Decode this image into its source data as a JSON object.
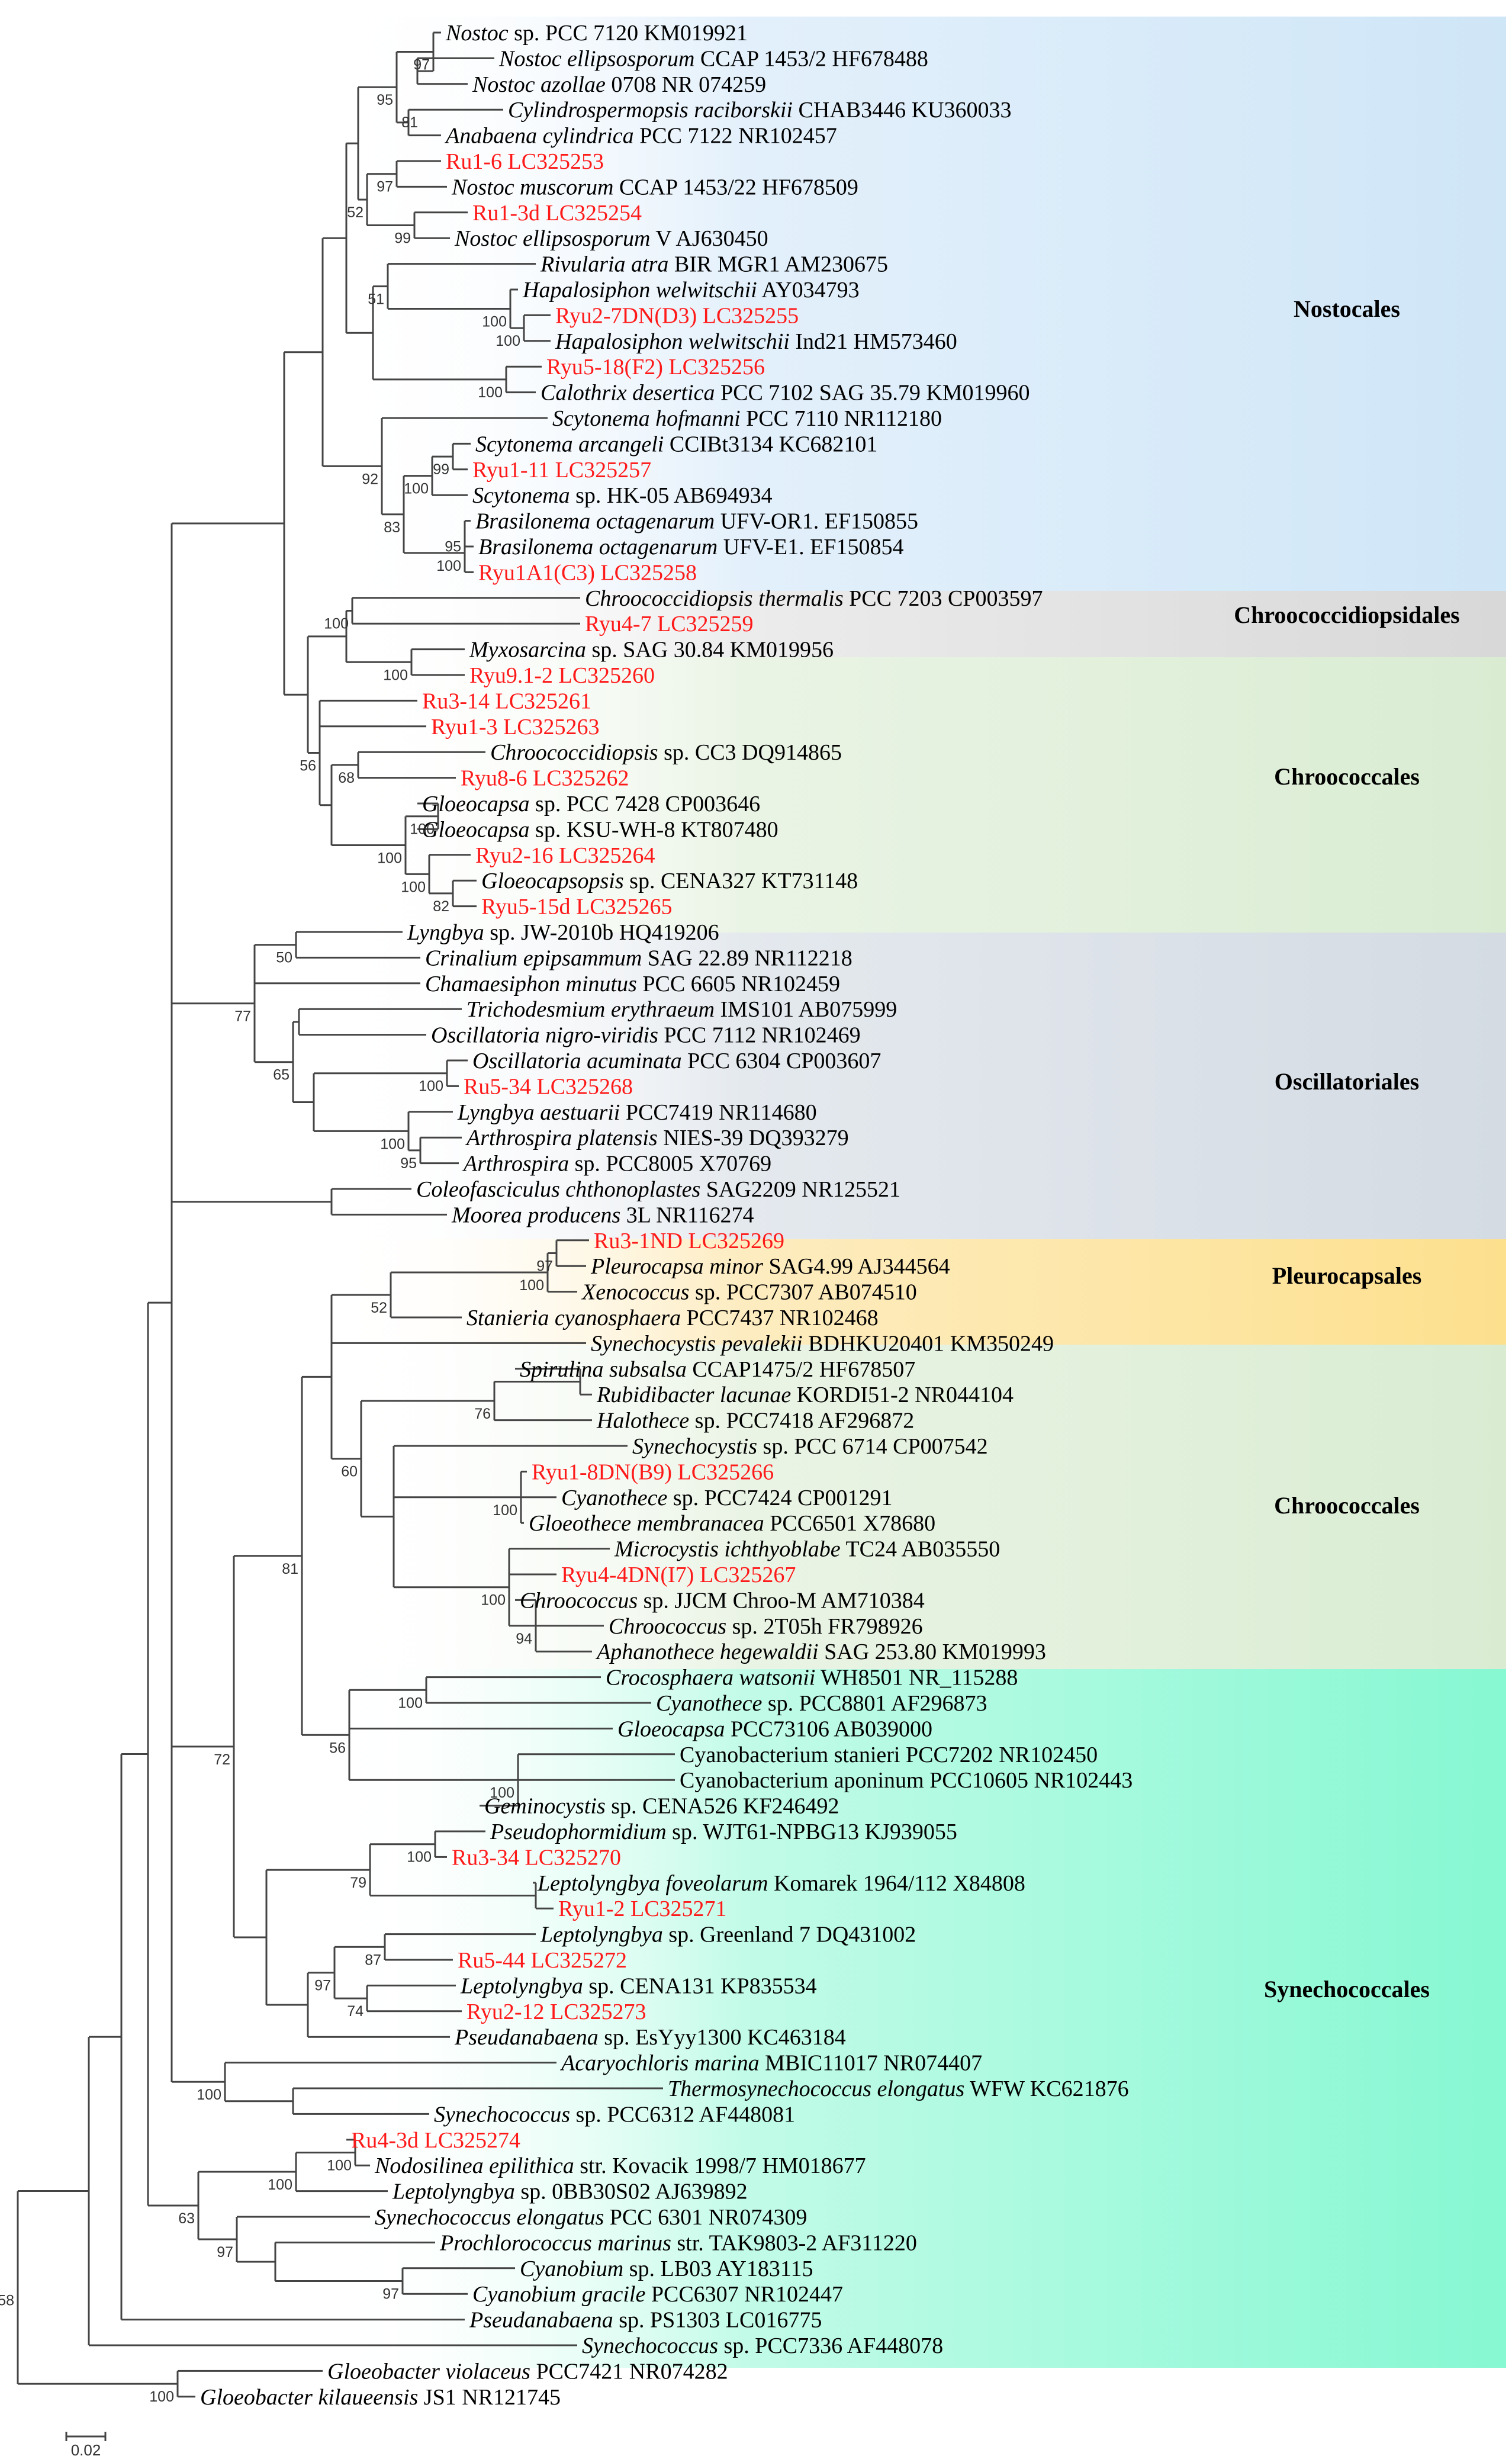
{
  "figure": "Phylogenetic tree of cyanobacteria 16S rRNA sequences",
  "orders": [
    {
      "name": "Nostocales",
      "color": "#cfe6f7"
    },
    {
      "name": "Chroococcidiopsidales",
      "color": "#dcdcdc"
    },
    {
      "name": "Chroococcales",
      "color": "#dcedd5"
    },
    {
      "name": "Oscillatoriales",
      "color": "#d6dde4"
    },
    {
      "name": "Pleurocapsales",
      "color": "#fde08e"
    },
    {
      "name": "Chroococcales",
      "color": "#dcedd5"
    },
    {
      "name": "Synechococcales",
      "color": "#8ff9d6"
    }
  ],
  "taxa": [
    {
      "it": "Nostoc",
      "rest": " sp. PCC 7120 KM019921",
      "red": false
    },
    {
      "it": "Nostoc ellipsosporum",
      "rest": " CCAP 1453/2 HF678488",
      "red": false
    },
    {
      "it": "Nostoc azollae",
      "rest": " 0708 NR 074259",
      "red": false
    },
    {
      "it": "Cylindrospermopsis raciborskii",
      "rest": " CHAB3446 KU360033",
      "red": false
    },
    {
      "it": "Anabaena cylindrica",
      "rest": " PCC 7122 NR102457",
      "red": false
    },
    {
      "it": "",
      "rest": "Ru1-6  LC325253",
      "red": true
    },
    {
      "it": "Nostoc muscorum",
      "rest": " CCAP 1453/22 HF678509",
      "red": false
    },
    {
      "it": "",
      "rest": "Ru1-3d LC325254",
      "red": true
    },
    {
      "it": "Nostoc ellipsosporum",
      "rest": " V AJ630450",
      "red": false
    },
    {
      "it": "Rivularia atra",
      "rest": " BIR MGR1 AM230675",
      "red": false
    },
    {
      "it": "Hapalosiphon welwitschii",
      "rest": " AY034793",
      "red": false
    },
    {
      "it": "",
      "rest": "Ryu2-7DN(D3) LC325255",
      "red": true
    },
    {
      "it": "Hapalosiphon welwitschii",
      "rest": " Ind21 HM573460",
      "red": false
    },
    {
      "it": "",
      "rest": "Ryu5-18(F2) LC325256",
      "red": true
    },
    {
      "it": "Calothrix desertica",
      "rest": " PCC 7102 SAG 35.79 KM019960",
      "red": false
    },
    {
      "it": "Scytonema hofmanni",
      "rest": " PCC 7110 NR112180",
      "red": false
    },
    {
      "it": "Scytonema arcangeli",
      "rest": " CCIBt3134 KC682101",
      "red": false
    },
    {
      "it": "",
      "rest": "Ryu1-11 LC325257",
      "red": true
    },
    {
      "it": "Scytonema",
      "rest": " sp. HK-05 AB694934",
      "red": false
    },
    {
      "it": "Brasilonema octagenarum",
      "rest": " UFV-OR1. EF150855",
      "red": false
    },
    {
      "it": "Brasilonema octagenarum",
      "rest": " UFV-E1. EF150854",
      "red": false
    },
    {
      "it": "",
      "rest": "Ryu1A1(C3) LC325258",
      "red": true
    },
    {
      "it": "Chroococcidiopsis thermalis",
      "rest": " PCC 7203 CP003597",
      "red": false
    },
    {
      "it": "",
      "rest": "Ryu4-7 LC325259",
      "red": true
    },
    {
      "it": "Myxosarcina",
      "rest": " sp. SAG 30.84 KM019956",
      "red": false
    },
    {
      "it": "",
      "rest": "Ryu9.1-2 LC325260",
      "red": true
    },
    {
      "it": "",
      "rest": "Ru3-14 LC325261",
      "red": true
    },
    {
      "it": "",
      "rest": "Ryu1-3 LC325263",
      "red": true
    },
    {
      "it": "Chroococcidiopsis",
      "rest": " sp. CC3 DQ914865",
      "red": false
    },
    {
      "it": "",
      "rest": "Ryu8-6 LC325262",
      "red": true
    },
    {
      "it": "Gloeocapsa",
      "rest": " sp. PCC 7428 CP003646",
      "red": false
    },
    {
      "it": "Gloeocapsa",
      "rest": " sp. KSU-WH-8 KT807480",
      "red": false
    },
    {
      "it": "",
      "rest": "Ryu2-16 LC325264",
      "red": true
    },
    {
      "it": "Gloeocapsopsis",
      "rest": " sp. CENA327 KT731148",
      "red": false
    },
    {
      "it": "",
      "rest": "Ryu5-15d LC325265",
      "red": true
    },
    {
      "it": "Lyngbya",
      "rest": " sp. JW-2010b HQ419206",
      "red": false
    },
    {
      "it": "Crinalium epipsammum",
      "rest": " SAG 22.89 NR112218",
      "red": false
    },
    {
      "it": "Chamaesiphon minutus",
      "rest": " PCC 6605 NR102459",
      "red": false
    },
    {
      "it": "Trichodesmium erythraeum",
      "rest": " IMS101 AB075999",
      "red": false
    },
    {
      "it": "Oscillatoria nigro-viridis",
      "rest": " PCC 7112 NR102469",
      "red": false
    },
    {
      "it": "Oscillatoria acuminata",
      "rest": " PCC 6304 CP003607",
      "red": false
    },
    {
      "it": "",
      "rest": "Ru5-34 LC325268",
      "red": true
    },
    {
      "it": "Lyngbya aestuarii",
      "rest": " PCC7419 NR114680",
      "red": false
    },
    {
      "it": "Arthrospira platensis",
      "rest": " NIES-39 DQ393279",
      "red": false
    },
    {
      "it": "Arthrospira",
      "rest": "  sp. PCC8005 X70769",
      "red": false
    },
    {
      "it": "Coleofasciculus chthonoplastes",
      "rest": " SAG2209 NR125521",
      "red": false
    },
    {
      "it": "Moorea producens",
      "rest": " 3L NR116274",
      "red": false
    },
    {
      "it": "",
      "rest": "Ru3-1ND LC325269",
      "red": true
    },
    {
      "it": "Pleurocapsa minor",
      "rest": " SAG4.99 AJ344564",
      "red": false
    },
    {
      "it": "Xenococcus",
      "rest": " sp. PCC7307 AB074510",
      "red": false
    },
    {
      "it": "Stanieria cyanosphaera",
      "rest": " PCC7437 NR102468",
      "red": false
    },
    {
      "it": "Synechocystis pevalekii",
      "rest": " BDHKU20401 KM350249",
      "red": false
    },
    {
      "it": "Spirulina subsalsa",
      "rest": " CCAP1475/2 HF678507",
      "red": false
    },
    {
      "it": "Rubidibacter lacunae",
      "rest": " KORDI51-2 NR044104",
      "red": false
    },
    {
      "it": "Halothece",
      "rest": " sp. PCC7418 AF296872",
      "red": false
    },
    {
      "it": "Synechocystis",
      "rest": " sp. PCC 6714 CP007542",
      "red": false
    },
    {
      "it": "",
      "rest": "Ryu1-8DN(B9) LC325266",
      "red": true
    },
    {
      "it": "Cyanothece",
      "rest": " sp. PCC7424 CP001291",
      "red": false
    },
    {
      "it": "Gloeothece membranacea",
      "rest": " PCC6501 X78680",
      "red": false
    },
    {
      "it": "Microcystis ichthyoblabe",
      "rest": " TC24 AB035550",
      "red": false
    },
    {
      "it": "",
      "rest": "Ryu4-4DN(I7) LC325267",
      "red": true
    },
    {
      "it": "Chroococcus",
      "rest": " sp. JJCM Chroo-M AM710384",
      "red": false
    },
    {
      "it": "Chroococcus",
      "rest": " sp. 2T05h FR798926",
      "red": false
    },
    {
      "it": "Aphanothece hegewaldii",
      "rest": " SAG 253.80 KM019993",
      "red": false
    },
    {
      "it": "Crocosphaera watsonii",
      "rest": " WH8501 NR_115288",
      "red": false
    },
    {
      "it": "Cyanothece",
      "rest": " sp. PCC8801 AF296873",
      "red": false
    },
    {
      "it": "Gloeocapsa",
      "rest": " PCC73106 AB039000",
      "red": false
    },
    {
      "it": "",
      "rest": "Cyanobacterium stanieri PCC7202 NR102450",
      "red": false
    },
    {
      "it": "",
      "rest": "Cyanobacterium aponinum PCC10605 NR102443",
      "red": false
    },
    {
      "it": "Geminocystis",
      "rest": " sp. CENA526 KF246492",
      "red": false
    },
    {
      "it": "Pseudophormidium",
      "rest": " sp. WJT61-NPBG13 KJ939055",
      "red": false
    },
    {
      "it": "",
      "rest": "Ru3-34 LC325270",
      "red": true
    },
    {
      "it": "Leptolyngbya foveolarum",
      "rest": " Komarek 1964/112 X84808",
      "red": false
    },
    {
      "it": "",
      "rest": "Ryu1-2 LC325271",
      "red": true
    },
    {
      "it": "Leptolyngbya",
      "rest": " sp. Greenland 7 DQ431002",
      "red": false
    },
    {
      "it": "",
      "rest": "Ru5-44 LC325272",
      "red": true
    },
    {
      "it": "Leptolyngbya",
      "rest": " sp. CENA131 KP835534",
      "red": false
    },
    {
      "it": "",
      "rest": "Ryu2-12 LC325273",
      "red": true
    },
    {
      "it": "Pseudanabaena",
      "rest": " sp. EsYyy1300 KC463184",
      "red": false
    },
    {
      "it": "Acaryochloris marina",
      "rest": " MBIC11017 NR074407",
      "red": false
    },
    {
      "it": "Thermosynechococcus elongatus",
      "rest": " WFW KC621876",
      "red": false
    },
    {
      "it": "Synechococcus",
      "rest": " sp. PCC6312 AF448081",
      "red": false
    },
    {
      "it": "",
      "rest": "Ru4-3d LC325274",
      "red": true
    },
    {
      "it": "Nodosilinea epilithica",
      "rest": " str. Kovacik 1998/7 HM018677",
      "red": false
    },
    {
      "it": "Leptolyngbya",
      "rest": " sp. 0BB30S02 AJ639892",
      "red": false
    },
    {
      "it": "Synechococcus elongatus",
      "rest": " PCC 6301 NR074309",
      "red": false
    },
    {
      "it": "Prochlorococcus marinus",
      "rest": " str. TAK9803-2 AF311220",
      "red": false
    },
    {
      "it": "Cyanobium",
      "rest": " sp. LB03 AY183115",
      "red": false
    },
    {
      "it": "Cyanobium gracile",
      "rest": " PCC6307 NR102447",
      "red": false
    },
    {
      "it": "Pseudanabaena",
      "rest": " sp. PS1303 LC016775",
      "red": false
    },
    {
      "it": "Synechococcus",
      "rest": " sp. PCC7336 AF448078",
      "red": false
    },
    {
      "it": "Gloeobacter violaceus",
      "rest": " PCC7421 NR074282",
      "red": false
    },
    {
      "it": "Gloeobacter kilaueensis",
      "rest": " JS1 NR121745",
      "red": false
    }
  ],
  "bootstraps": [
    "97",
    "81",
    "95",
    "97",
    "52",
    "99",
    "51",
    "100",
    "100",
    "100",
    "99",
    "100",
    "92",
    "95",
    "83",
    "100",
    "100",
    "100",
    "56",
    "68",
    "100",
    "100",
    "82",
    "100",
    "50",
    "77",
    "65",
    "100",
    "95",
    "100",
    "97",
    "100",
    "52",
    "76",
    "100",
    "60",
    "100",
    "94",
    "81",
    "56",
    "100",
    "100",
    "100",
    "72",
    "79",
    "97",
    "87",
    "74",
    "100",
    "100",
    "58",
    "63",
    "97",
    "100",
    "97",
    "100"
  ],
  "scale_bar": "0.02"
}
